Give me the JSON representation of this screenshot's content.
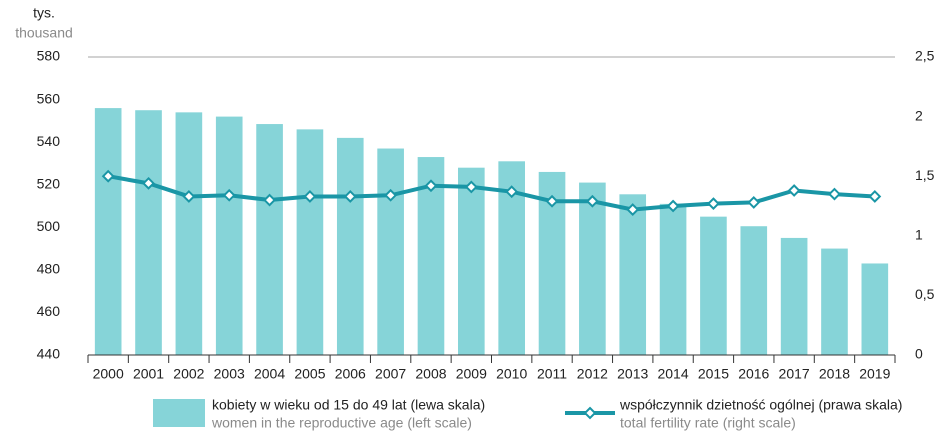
{
  "chart_data": {
    "type": "bar_line",
    "y_label": "tys.",
    "y_label_en": "thousand",
    "categories": [
      "2000",
      "2001",
      "2002",
      "2003",
      "2004",
      "2005",
      "2006",
      "2007",
      "2008",
      "2009",
      "2010",
      "2011",
      "2012",
      "2013",
      "2014",
      "2015",
      "2016",
      "2017",
      "2018",
      "2019"
    ],
    "series": [
      {
        "name": "kobiety w wieku od 15 do 49 lat (lewa skala)",
        "name_en": "women in the reproductive age (left scale)",
        "color": "#86d4d8",
        "axis": "y",
        "values": [
          556,
          555,
          554,
          552,
          548.5,
          546,
          542,
          537,
          533,
          528,
          531,
          526,
          521,
          515.5,
          511,
          505,
          500.5,
          495,
          490,
          483
        ]
      },
      {
        "name": "współczynnik dzietność ogólnej (prawa skala)",
        "name_en": "total fertility rate (right scale)",
        "color": "#1a96a6",
        "axis": "y2",
        "values": [
          1.5,
          1.44,
          1.33,
          1.34,
          1.3,
          1.33,
          1.33,
          1.34,
          1.42,
          1.41,
          1.37,
          1.29,
          1.29,
          1.22,
          1.25,
          1.27,
          1.28,
          1.38,
          1.35,
          1.33
        ]
      }
    ],
    "ylim": [
      440,
      580
    ],
    "yticks": [
      440,
      460,
      480,
      500,
      520,
      540,
      560,
      580
    ],
    "y2lim": [
      0,
      2.5
    ],
    "y2ticks": [
      0,
      {
        "value": 0.5,
        "label": "0,5"
      },
      1,
      {
        "value": 1.5,
        "label": "1,5"
      },
      2,
      {
        "value": 2.5,
        "label": "2,5"
      }
    ]
  }
}
